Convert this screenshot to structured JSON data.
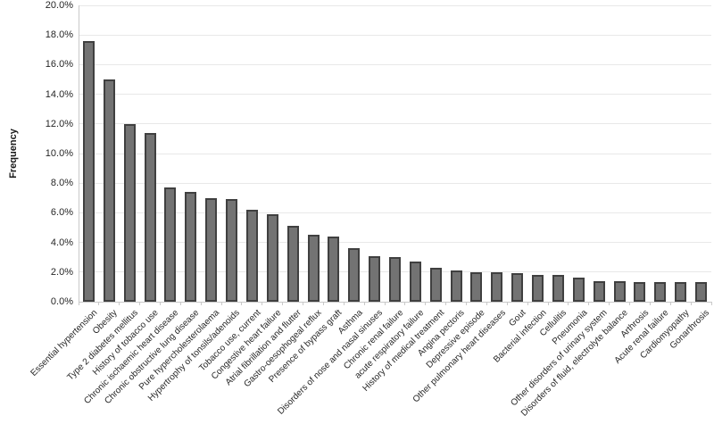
{
  "chart_data": {
    "type": "bar",
    "title": "",
    "xlabel": "",
    "ylabel": "Frequency",
    "ylim": [
      0,
      20
    ],
    "ytick_step": 2,
    "ytick_suffix": "%",
    "grid": "horizontal",
    "legend": "none",
    "bar_fill_color": "#737373",
    "bar_border_color": "#404040",
    "gridline_color": "#e8e8e8",
    "axis_color": "#c9c9c9",
    "categories": [
      "Essential hypertension",
      "Obesity",
      "Type 2 diabetes mellitus",
      "History of tobacco use",
      "Chronic ischaemic heart disease",
      "Chronic obstructive lung disease",
      "Pure hypercholesterolaema",
      "Hypertrophy of tonsils/adenoids",
      "Tobacco use, current",
      "Congestive heart failure",
      "Atrial fibrillation and flutter",
      "Gastro-oesophogeal reflux",
      "Presence of bypass graft",
      "Asthma",
      "Disorders of nose and nasal sinuses",
      "Chronic renal failure",
      "acute respiratory failure",
      "History of medical treatment",
      "Angina pectoris",
      "Depressive episode",
      "Other pulmonary heart diseases",
      "Gout",
      "Bacterial infection",
      "Cellulitis",
      "Pneumonia",
      "Other disorders of urinary system",
      "Disorders of fluid, electrolyte balance",
      "Arthrosis",
      "Acute renal failure",
      "Cardiomyopathy",
      "Gonarthrosis"
    ],
    "values": [
      17.6,
      15.0,
      12.0,
      11.4,
      7.7,
      7.4,
      7.0,
      6.9,
      6.2,
      5.9,
      5.1,
      4.5,
      4.4,
      3.6,
      3.1,
      3.0,
      2.7,
      2.3,
      2.1,
      2.0,
      2.0,
      1.9,
      1.8,
      1.8,
      1.6,
      1.4,
      1.4,
      1.3,
      1.3,
      1.3,
      1.3
    ]
  }
}
